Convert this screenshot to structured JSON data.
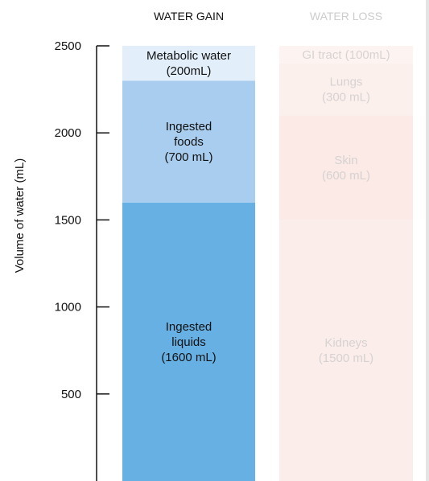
{
  "chart_data": {
    "type": "bar",
    "subtype": "stacked",
    "ylabel": "Volume of water (mL)",
    "xlabel": "",
    "ylim": [
      0,
      2500
    ],
    "yticks": [
      500,
      1000,
      1500,
      2000,
      2500
    ],
    "grid": false,
    "categories": [
      "WATER GAIN",
      "WATER LOSS"
    ],
    "stacks": [
      {
        "category": "WATER GAIN",
        "faded": false,
        "segments": [
          {
            "value": 1600,
            "label_lines": [
              "Ingested",
              "liquids",
              "(1600 mL)"
            ],
            "color": "#66b0e4"
          },
          {
            "value": 700,
            "label_lines": [
              "Ingested",
              "foods",
              "(700 mL)"
            ],
            "color": "#a8cdee"
          },
          {
            "value": 200,
            "label_lines": [
              "Metabolic water",
              "(200mL)"
            ],
            "color": "#e2eefa"
          }
        ]
      },
      {
        "category": "WATER LOSS",
        "faded": true,
        "segments": [
          {
            "value": 1500,
            "label_lines": [
              "Kidneys",
              "(1500 mL)"
            ],
            "color": "#fbeeea"
          },
          {
            "value": 600,
            "label_lines": [
              "Skin",
              "(600 mL)"
            ],
            "color": "#fbeae5"
          },
          {
            "value": 300,
            "label_lines": [
              "Lungs",
              "(300 mL)"
            ],
            "color": "#fcf0ec"
          },
          {
            "value": 100,
            "label_lines": [
              "GI tract (100mL)"
            ],
            "color": "#fdf4f1"
          }
        ]
      }
    ]
  },
  "colors": {
    "axis": "#111111",
    "text": "#111111",
    "faded_text": "#d6d2d2",
    "header_faded": "#cccccc"
  }
}
